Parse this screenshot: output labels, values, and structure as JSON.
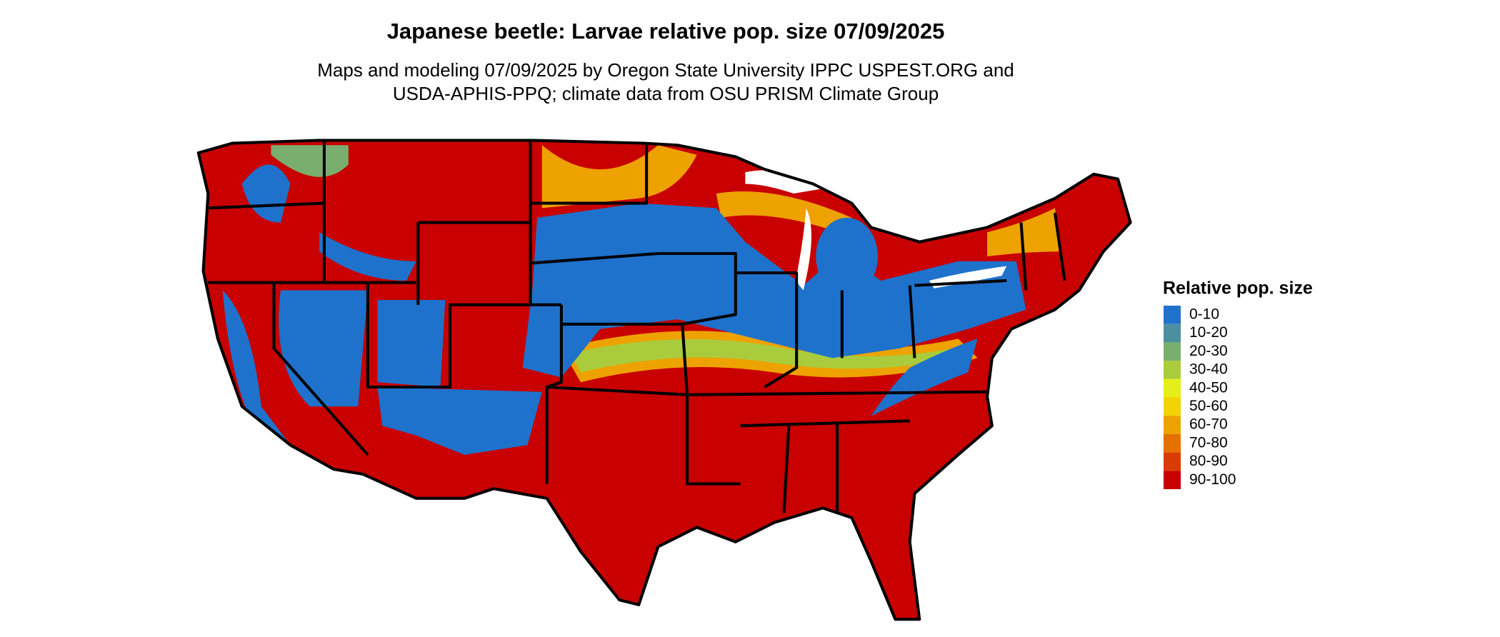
{
  "title": "Japanese beetle: Larvae relative pop. size 07/09/2025",
  "subtitle": [
    "Maps and modeling 07/09/2025 by Oregon State University IPPC USPEST.ORG and",
    "USDA-APHIS-PPQ; climate data from OSU PRISM Climate Group"
  ],
  "legend": {
    "title": "Relative pop. size",
    "items": [
      {
        "label": "0-10",
        "color": "#1f72cc"
      },
      {
        "label": "10-20",
        "color": "#4a90a0"
      },
      {
        "label": "20-30",
        "color": "#7aae6e"
      },
      {
        "label": "30-40",
        "color": "#aacc3c"
      },
      {
        "label": "40-50",
        "color": "#e4ee1a"
      },
      {
        "label": "50-60",
        "color": "#f2d400"
      },
      {
        "label": "60-70",
        "color": "#eea200"
      },
      {
        "label": "70-80",
        "color": "#e47000"
      },
      {
        "label": "80-90",
        "color": "#d83c00"
      },
      {
        "label": "90-100",
        "color": "#c80000"
      }
    ]
  }
}
